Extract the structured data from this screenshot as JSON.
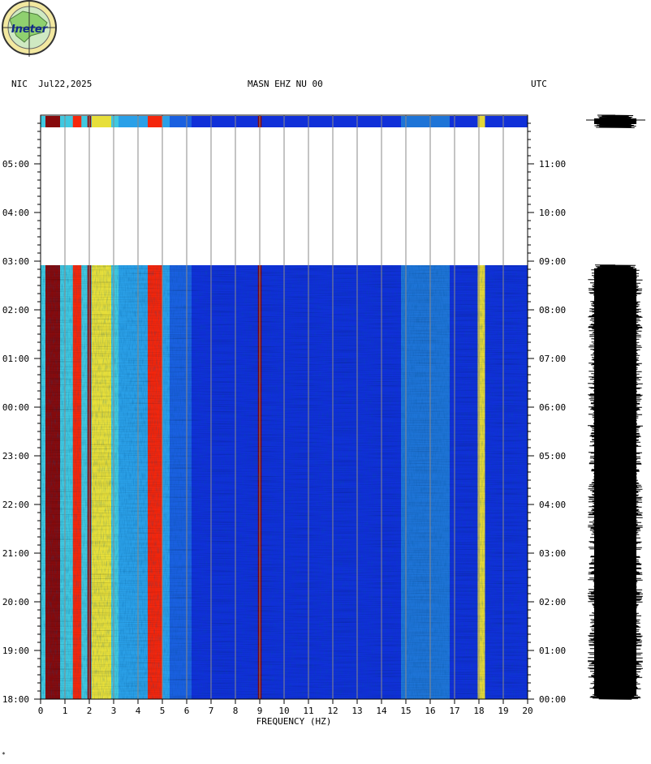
{
  "header": {
    "left": "NIC  Jul22,2025",
    "center": "MASN EHZ NU 00",
    "right": "UTC"
  },
  "logo": {
    "text": "Ineter",
    "icon": "ineter-logo-icon"
  },
  "footer_mark": "*",
  "chart_data": {
    "type": "heatmap",
    "title": "",
    "xlabel": "FREQUENCY (HZ)",
    "ylabel": "",
    "xlim": [
      0,
      20
    ],
    "x_ticks": [
      "0",
      "1",
      "2",
      "3",
      "4",
      "5",
      "6",
      "7",
      "8",
      "9",
      "10",
      "11",
      "12",
      "13",
      "14",
      "15",
      "16",
      "17",
      "18",
      "19",
      "20"
    ],
    "left_time_ticks": [
      "18:00",
      "19:00",
      "20:00",
      "21:00",
      "22:00",
      "23:00",
      "00:00",
      "01:00",
      "02:00",
      "03:00",
      "04:00",
      "05:00"
    ],
    "right_time_ticks": [
      "00:00",
      "01:00",
      "02:00",
      "03:00",
      "04:00",
      "05:00",
      "06:00",
      "07:00",
      "08:00",
      "09:00",
      "10:00",
      "11:00"
    ],
    "time_axis_hours_from_bottom": [
      0,
      12
    ],
    "data_segments_hours": [
      [
        0,
        8.92
      ],
      [
        11.75,
        12
      ]
    ],
    "gap_hours": [
      8.92,
      11.75
    ],
    "dominant_frequency_bands_hz": [
      {
        "center": 0.5,
        "width": 0.6,
        "level": "very-high"
      },
      {
        "center": 1.5,
        "width": 0.35,
        "level": "high"
      },
      {
        "center": 2.0,
        "width": 0.15,
        "level": "very-high"
      },
      {
        "center": 2.5,
        "width": 0.8,
        "level": "medium"
      },
      {
        "center": 4.7,
        "width": 0.6,
        "level": "high"
      },
      {
        "center": 9.0,
        "width": 0.15,
        "level": "very-high"
      },
      {
        "center": 15.8,
        "width": 2.0,
        "level": "low-medium"
      },
      {
        "center": 18.1,
        "width": 0.3,
        "level": "medium"
      }
    ],
    "colormap": [
      "#000080",
      "#0000ff",
      "#00aaff",
      "#00ffc0",
      "#ffff00",
      "#ff8000",
      "#ff0000",
      "#800000"
    ],
    "grid": true
  }
}
